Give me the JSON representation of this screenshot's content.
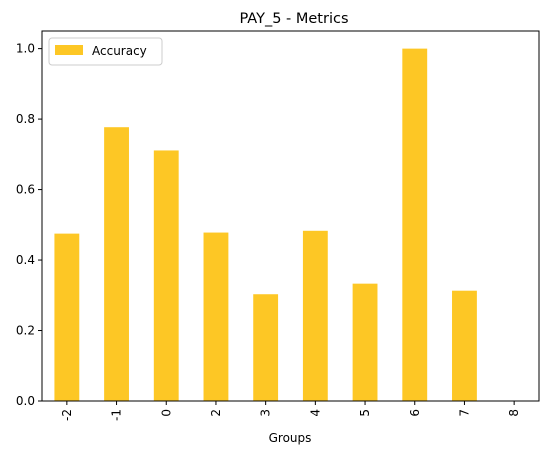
{
  "chart_data": {
    "type": "bar",
    "title": "PAY_5 - Metrics",
    "xlabel": "Groups",
    "ylabel": "",
    "categories": [
      "-2",
      "-1",
      "0",
      "2",
      "3",
      "4",
      "5",
      "6",
      "7",
      "8"
    ],
    "series": [
      {
        "name": "Accuracy",
        "values": [
          0.475,
          0.777,
          0.711,
          0.478,
          0.303,
          0.483,
          0.333,
          1.0,
          0.313,
          0.0
        ],
        "color": "#fdc725"
      }
    ],
    "ylim": [
      0,
      1.05
    ],
    "yticks": [
      0.0,
      0.2,
      0.4,
      0.6,
      0.8,
      1.0
    ],
    "ytick_labels": [
      "0.0",
      "0.2",
      "0.4",
      "0.6",
      "0.8",
      "1.0"
    ],
    "xtick_rotation": "vertical",
    "grid": false,
    "legend_position": "upper-left"
  }
}
